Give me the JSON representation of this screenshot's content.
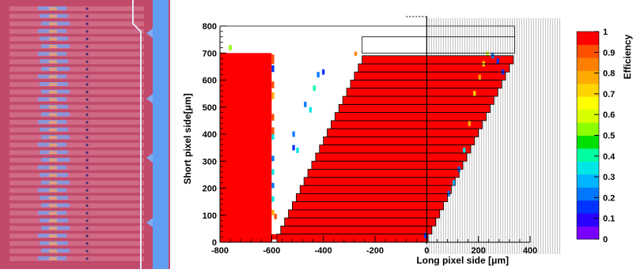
{
  "layout_image": {
    "colors": {
      "background": "#c14a6a",
      "strip": "#7f9ee8",
      "guard": "#5f9ef0",
      "via": "#4a2a70",
      "cell": "#e0a080"
    }
  },
  "chart_data": {
    "type": "heatmap",
    "title": "",
    "xlabel": "Long pixel side [μm]",
    "ylabel": "Short pixel side[μm]",
    "zlabel": "Efficiency",
    "xlim": [
      -800,
      400
    ],
    "ylim": [
      0,
      800
    ],
    "zlim": [
      0,
      1
    ],
    "x_ticks": [
      "-800",
      "-600",
      "-400",
      "-200",
      "0",
      "200",
      "400"
    ],
    "y_ticks": [
      "0",
      "100",
      "200",
      "300",
      "400",
      "500",
      "600",
      "700",
      "800"
    ],
    "z_ticks": [
      "0",
      "0.1",
      "0.2",
      "0.3",
      "0.4",
      "0.5",
      "0.6",
      "0.7",
      "0.8",
      "0.9",
      "1"
    ],
    "grid": false,
    "colorscale": [
      "#7a00ff",
      "#2a00ff",
      "#0033ff",
      "#0077ff",
      "#00b4ff",
      "#00e6e6",
      "#00ffa0",
      "#00e000",
      "#8cff00",
      "#d8ff00",
      "#ffff00",
      "#ffd400",
      "#ffaa00",
      "#ff8000",
      "#ff5000",
      "#ff0000"
    ],
    "full_efficiency_region": [
      {
        "x": [
          -800,
          -600
        ],
        "y": [
          0,
          700
        ],
        "value": 1.0
      },
      {
        "x": [
          -600,
          -555
        ],
        "y": [
          10,
          30
        ],
        "value": 1.0
      }
    ],
    "rows": [
      {
        "y": [
          0,
          30
        ],
        "x_start": -580,
        "x_end": 5,
        "value": 1.0
      },
      {
        "y": [
          30,
          60
        ],
        "x_start": -565,
        "x_end": 20,
        "value": 1.0
      },
      {
        "y": [
          60,
          90
        ],
        "x_start": -550,
        "x_end": 35,
        "value": 1.0
      },
      {
        "y": [
          90,
          120
        ],
        "x_start": -535,
        "x_end": 50,
        "value": 1.0
      },
      {
        "y": [
          120,
          150
        ],
        "x_start": -520,
        "x_end": 65,
        "value": 1.0
      },
      {
        "y": [
          150,
          180
        ],
        "x_start": -505,
        "x_end": 80,
        "value": 1.0
      },
      {
        "y": [
          180,
          210
        ],
        "x_start": -490,
        "x_end": 95,
        "value": 1.0
      },
      {
        "y": [
          210,
          240
        ],
        "x_start": -475,
        "x_end": 110,
        "value": 1.0
      },
      {
        "y": [
          240,
          270
        ],
        "x_start": -460,
        "x_end": 125,
        "value": 1.0
      },
      {
        "y": [
          270,
          300
        ],
        "x_start": -445,
        "x_end": 140,
        "value": 1.0
      },
      {
        "y": [
          300,
          330
        ],
        "x_start": -430,
        "x_end": 155,
        "value": 1.0
      },
      {
        "y": [
          330,
          360
        ],
        "x_start": -415,
        "x_end": 170,
        "value": 1.0
      },
      {
        "y": [
          360,
          390
        ],
        "x_start": -400,
        "x_end": 185,
        "value": 1.0
      },
      {
        "y": [
          390,
          420
        ],
        "x_start": -385,
        "x_end": 200,
        "value": 1.0
      },
      {
        "y": [
          420,
          450
        ],
        "x_start": -370,
        "x_end": 215,
        "value": 1.0
      },
      {
        "y": [
          450,
          480
        ],
        "x_start": -355,
        "x_end": 230,
        "value": 1.0
      },
      {
        "y": [
          480,
          510
        ],
        "x_start": -340,
        "x_end": 245,
        "value": 1.0
      },
      {
        "y": [
          510,
          540
        ],
        "x_start": -325,
        "x_end": 260,
        "value": 1.0
      },
      {
        "y": [
          540,
          570
        ],
        "x_start": -310,
        "x_end": 275,
        "value": 1.0
      },
      {
        "y": [
          570,
          600
        ],
        "x_start": -295,
        "x_end": 290,
        "value": 1.0
      },
      {
        "y": [
          600,
          630
        ],
        "x_start": -280,
        "x_end": 305,
        "value": 1.0
      },
      {
        "y": [
          630,
          660
        ],
        "x_start": -265,
        "x_end": 320,
        "value": 1.0
      },
      {
        "y": [
          660,
          690
        ],
        "x_start": -250,
        "x_end": 335,
        "value": 1.0
      }
    ],
    "edge_cells": [
      {
        "x": -765,
        "y": 710,
        "w": 10,
        "h": 20,
        "value": 0.55
      },
      {
        "x": -600,
        "y": 660,
        "w": 10,
        "h": 35,
        "value": 0.9
      },
      {
        "x": -600,
        "y": 630,
        "w": 10,
        "h": 25,
        "value": 0.1
      },
      {
        "x": -600,
        "y": 570,
        "w": 10,
        "h": 25,
        "value": 0.9
      },
      {
        "x": -600,
        "y": 530,
        "w": 10,
        "h": 25,
        "value": 0.78
      },
      {
        "x": -600,
        "y": 450,
        "w": 10,
        "h": 25,
        "value": 0.9
      },
      {
        "x": -600,
        "y": 400,
        "w": 10,
        "h": 25,
        "value": 0.9
      },
      {
        "x": -600,
        "y": 380,
        "w": 10,
        "h": 20,
        "value": 0.3
      },
      {
        "x": -600,
        "y": 300,
        "w": 10,
        "h": 20,
        "value": 0.2
      },
      {
        "x": -600,
        "y": 250,
        "w": 10,
        "h": 20,
        "value": 0.35
      },
      {
        "x": -600,
        "y": 200,
        "w": 10,
        "h": 20,
        "value": 0.2
      },
      {
        "x": -600,
        "y": 150,
        "w": 10,
        "h": 20,
        "value": 0.3
      },
      {
        "x": -600,
        "y": 100,
        "w": 10,
        "h": 20,
        "value": 0.8
      },
      {
        "x": -590,
        "y": 85,
        "w": 10,
        "h": 20,
        "value": 0.9
      },
      {
        "x": -520,
        "y": 390,
        "w": 10,
        "h": 20,
        "value": 0.2
      },
      {
        "x": -520,
        "y": 340,
        "w": 10,
        "h": 20,
        "value": 0.1
      },
      {
        "x": -505,
        "y": 330,
        "w": 10,
        "h": 20,
        "value": 0.3
      },
      {
        "x": -475,
        "y": 500,
        "w": 10,
        "h": 20,
        "value": 0.2
      },
      {
        "x": -455,
        "y": 480,
        "w": 10,
        "h": 20,
        "value": 0.3
      },
      {
        "x": -440,
        "y": 560,
        "w": 10,
        "h": 20,
        "value": 0.4
      },
      {
        "x": -425,
        "y": 610,
        "w": 10,
        "h": 20,
        "value": 0.2
      },
      {
        "x": -405,
        "y": 620,
        "w": 10,
        "h": 20,
        "value": 0.1
      },
      {
        "x": -280,
        "y": 690,
        "w": 10,
        "h": 15,
        "value": 0.85
      },
      {
        "x": -10,
        "y": 15,
        "w": 10,
        "h": 20,
        "value": 0.1
      },
      {
        "x": 200,
        "y": 600,
        "w": 10,
        "h": 20,
        "value": 0.8
      },
      {
        "x": 215,
        "y": 650,
        "w": 10,
        "h": 20,
        "value": 0.7
      },
      {
        "x": 230,
        "y": 690,
        "w": 10,
        "h": 15,
        "value": 0.6
      },
      {
        "x": 250,
        "y": 680,
        "w": 10,
        "h": 20,
        "value": 0.2
      },
      {
        "x": 270,
        "y": 660,
        "w": 10,
        "h": 20,
        "value": 0.15
      },
      {
        "x": 290,
        "y": 620,
        "w": 10,
        "h": 20,
        "value": 0.1
      },
      {
        "x": 180,
        "y": 540,
        "w": 10,
        "h": 20,
        "value": 0.75
      },
      {
        "x": 160,
        "y": 430,
        "w": 10,
        "h": 20,
        "value": 0.8
      },
      {
        "x": 140,
        "y": 330,
        "w": 10,
        "h": 20,
        "value": 0.3
      },
      {
        "x": 120,
        "y": 260,
        "w": 10,
        "h": 20,
        "value": 0.2
      },
      {
        "x": 100,
        "y": 210,
        "w": 10,
        "h": 20,
        "value": 0.25
      },
      {
        "x": 80,
        "y": 170,
        "w": 10,
        "h": 20,
        "value": 0.2
      }
    ]
  }
}
